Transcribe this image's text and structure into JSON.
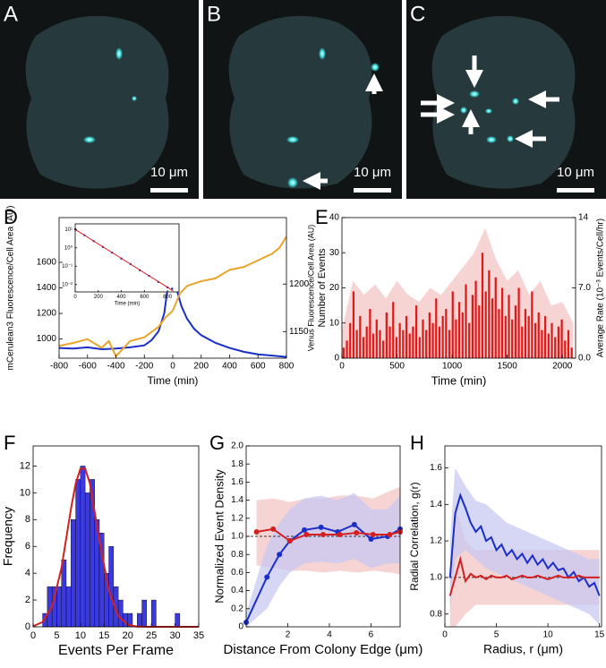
{
  "images": [
    {
      "label": "A",
      "scale_bar": "10 μm"
    },
    {
      "label": "B",
      "scale_bar": "10 μm"
    },
    {
      "label": "C",
      "scale_bar": "10 μm"
    }
  ],
  "chart_data": [
    {
      "type": "line",
      "label": "D",
      "xlabel": "Time (min)",
      "ylabel": "mCerulean3 Fluorescence/Cell Area (AU)",
      "y2label": "Venus Fluorescence/Cell Area (AU)",
      "xlim": [
        -800,
        800
      ],
      "xticks": [
        -800,
        -600,
        -400,
        -200,
        0,
        200,
        400,
        600,
        800
      ],
      "ylim": [
        850,
        1950
      ],
      "yticks": [
        1000,
        1200,
        1400,
        1600
      ],
      "y2lim": [
        1122,
        1270
      ],
      "y2ticks": [
        1150,
        1200
      ],
      "series": [
        {
          "color": "#1a2fc8",
          "x": [
            -800,
            -700,
            -600,
            -500,
            -400,
            -300,
            -200,
            -150,
            -100,
            -60,
            -30,
            -15,
            0,
            30,
            60,
            100,
            150,
            200,
            300,
            400,
            500,
            600,
            700,
            800
          ],
          "values": [
            930,
            925,
            935,
            920,
            925,
            935,
            950,
            990,
            1060,
            1200,
            1450,
            1690,
            1560,
            1380,
            1260,
            1160,
            1080,
            1030,
            970,
            930,
            900,
            880,
            870,
            860
          ]
        },
        {
          "color": "#e8a52a",
          "axis": "y2",
          "x": [
            -800,
            -700,
            -600,
            -500,
            -450,
            -400,
            -300,
            -200,
            -100,
            -50,
            0,
            50,
            100,
            200,
            300,
            400,
            500,
            600,
            700,
            750,
            800
          ],
          "values": [
            1135,
            1138,
            1142,
            1133,
            1140,
            1124,
            1140,
            1144,
            1155,
            1165,
            1172,
            1190,
            1198,
            1203,
            1206,
            1215,
            1218,
            1225,
            1232,
            1238,
            1250
          ]
        }
      ]
    },
    {
      "type": "scatter",
      "xlabel": "Time (min)",
      "log_y": true,
      "xlim": [
        0,
        900
      ],
      "xticks": [
        0,
        200,
        400,
        600,
        800
      ],
      "ylim": [
        0.004,
        20
      ],
      "yticks": [
        {
          "value": 10,
          "label": "10¹"
        },
        {
          "value": 1,
          "label": "10⁰"
        },
        {
          "value": 0.1,
          "label": "10⁻¹"
        },
        {
          "value": 0.01,
          "label": "10⁻²"
        }
      ],
      "series": [
        {
          "color": "#1a2fc8",
          "mode": "markers",
          "x": [
            0,
            80,
            160,
            240,
            320,
            400,
            480,
            560,
            640,
            720,
            800,
            840
          ],
          "values": [
            10,
            4.8,
            2.3,
            1.1,
            0.55,
            0.26,
            0.13,
            0.06,
            0.03,
            0.014,
            0.007,
            0.006
          ]
        },
        {
          "color": "#d42020",
          "mode": "lines",
          "x": [
            0,
            850
          ],
          "values": [
            10,
            0.0045
          ]
        }
      ]
    },
    {
      "type": "bar",
      "label": "E",
      "xlabel": "Time (min)",
      "ylabel": "Number of Events",
      "y2label": "Average Rate (10⁻³ Events/Cell/hr)",
      "xlim": [
        0,
        2120
      ],
      "xticks": [
        0,
        500,
        1000,
        1500,
        2000
      ],
      "ylim": [
        0,
        40
      ],
      "yticks": [
        0,
        10,
        20,
        30,
        40
      ],
      "y2lim": [
        0,
        14
      ],
      "y2ticks": [
        {
          "value": 0,
          "label": "0.0"
        },
        {
          "value": 7,
          "label": "7.0"
        },
        14
      ],
      "bands": [
        {
          "color": "#f4c6c6",
          "x": [
            0,
            100,
            200,
            300,
            400,
            500,
            600,
            700,
            800,
            900,
            1000,
            1100,
            1200,
            1300,
            1400,
            1500,
            1600,
            1700,
            1800,
            1900,
            2000,
            2100
          ],
          "upper": [
            8,
            22,
            18,
            21,
            17,
            22,
            18,
            16,
            20,
            18,
            22,
            26,
            30,
            37,
            28,
            22,
            25,
            18,
            22,
            15,
            16,
            10
          ]
        }
      ],
      "series": [
        {
          "color": "#e01818",
          "x": [
            15,
            45,
            75,
            105,
            135,
            165,
            195,
            225,
            255,
            285,
            315,
            345,
            375,
            405,
            435,
            465,
            495,
            525,
            555,
            585,
            615,
            645,
            675,
            705,
            735,
            765,
            795,
            825,
            855,
            885,
            915,
            945,
            975,
            1005,
            1035,
            1065,
            1095,
            1125,
            1155,
            1185,
            1215,
            1245,
            1275,
            1305,
            1335,
            1365,
            1395,
            1425,
            1455,
            1485,
            1515,
            1545,
            1575,
            1605,
            1635,
            1665,
            1695,
            1725,
            1755,
            1785,
            1815,
            1845,
            1875,
            1905,
            1935,
            1965,
            1995,
            2025,
            2055,
            2085
          ],
          "values": [
            3,
            5,
            10,
            19,
            8,
            12,
            6,
            9,
            14,
            7,
            11,
            8,
            5,
            13,
            9,
            16,
            6,
            10,
            8,
            12,
            7,
            9,
            15,
            6,
            11,
            8,
            13,
            10,
            17,
            9,
            12,
            14,
            8,
            19,
            11,
            16,
            13,
            21,
            10,
            18,
            22,
            15,
            30,
            19,
            25,
            17,
            23,
            14,
            20,
            12,
            18,
            11,
            15,
            20,
            9,
            14,
            12,
            19,
            10,
            13,
            8,
            12,
            7,
            10,
            6,
            9,
            11,
            5,
            8,
            3
          ]
        }
      ]
    },
    {
      "type": "histogram",
      "label": "F",
      "xlabel": "Events Per Frame",
      "ylabel": "Frequency",
      "xlim": [
        0,
        35
      ],
      "xticks": [
        0,
        5,
        10,
        15,
        20,
        25,
        30,
        35
      ],
      "ylim": [
        0,
        13.5
      ],
      "yticks": [
        0,
        2,
        4,
        6,
        8,
        10,
        12
      ],
      "color": "#3a3ae0",
      "bins": [
        2,
        3,
        4,
        5,
        6,
        7,
        8,
        9,
        10,
        11,
        12,
        13,
        14,
        15,
        16,
        17,
        18,
        19,
        20,
        21,
        22,
        23,
        24,
        25,
        26,
        27,
        28,
        29,
        30,
        31,
        32
      ],
      "values": [
        1,
        3,
        3,
        3,
        5,
        3,
        8,
        11,
        12,
        10,
        11,
        8,
        7,
        4,
        6,
        3,
        2,
        1,
        1,
        0,
        1,
        2,
        0,
        2,
        0,
        0,
        0,
        0,
        1,
        0
      ],
      "series": [
        {
          "color": "#d42020",
          "x": [
            0,
            2,
            4,
            6,
            8,
            9,
            10,
            11,
            12,
            14,
            16,
            18,
            20,
            22,
            25,
            30,
            35
          ],
          "values": [
            0.05,
            0.35,
            1.5,
            4.4,
            8.8,
            10.7,
            11.8,
            11.8,
            10.7,
            6.5,
            2.7,
            0.8,
            0.15,
            0.02,
            0,
            0,
            0
          ]
        }
      ]
    },
    {
      "type": "line",
      "label": "G",
      "xlabel": "Distance From Colony Edge (μm)",
      "ylabel": "Normalized Event Density",
      "xlim": [
        0,
        7.4
      ],
      "xticks": [
        2,
        4,
        6
      ],
      "ylim": [
        0,
        2
      ],
      "yticks": [
        0,
        0.2,
        0.4,
        0.6,
        0.8,
        {
          "value": 1,
          "label": "1.0"
        },
        1.2,
        1.4,
        1.6,
        1.8,
        {
          "value": 2,
          "label": "2.0"
        }
      ],
      "hline": 1,
      "bands": [
        {
          "color": "#f4c6c6",
          "x": [
            0.5,
            1.3,
            2.1,
            2.9,
            3.7,
            4.5,
            5.3,
            6.1,
            6.9,
            7.4
          ],
          "lower": [
            0.68,
            0.65,
            0.62,
            0.62,
            0.6,
            0.62,
            0.6,
            0.62,
            0.6,
            0.58
          ],
          "upper": [
            1.4,
            1.42,
            1.38,
            1.42,
            1.42,
            1.45,
            1.45,
            1.42,
            1.5,
            1.55
          ]
        },
        {
          "color": "#c8c8f2",
          "x": [
            0,
            1,
            1.6,
            2.1,
            2.8,
            3.6,
            4.4,
            5.2,
            6.0,
            6.8,
            7.4
          ],
          "lower": [
            0,
            0.2,
            0.45,
            0.6,
            0.7,
            0.72,
            0.7,
            0.75,
            0.65,
            0.7,
            0.7
          ],
          "upper": [
            0.15,
            0.9,
            1.15,
            1.3,
            1.42,
            1.45,
            1.4,
            1.48,
            1.3,
            1.3,
            1.45
          ]
        }
      ],
      "series": [
        {
          "color": "#1a2fc8",
          "mode": "lines+markers",
          "x": [
            0,
            1,
            1.6,
            2.1,
            2.8,
            3.6,
            4.4,
            5.2,
            6.0,
            6.8,
            7.4
          ],
          "values": [
            0.05,
            0.55,
            0.8,
            0.95,
            1.07,
            1.1,
            1.05,
            1.13,
            0.97,
            1.0,
            1.08
          ]
        },
        {
          "color": "#d42020",
          "mode": "lines+markers",
          "x": [
            0.5,
            1.3,
            2.1,
            2.9,
            3.7,
            4.5,
            5.3,
            6.1,
            6.9,
            7.4
          ],
          "values": [
            1.05,
            1.08,
            0.95,
            1.02,
            1.02,
            1.02,
            1.04,
            1.02,
            1.02,
            1.05
          ]
        }
      ]
    },
    {
      "type": "line",
      "label": "H",
      "xlabel": "Radius, r (μm)",
      "ylabel": "Radial Correlation, g(r)",
      "xlim": [
        0,
        15.2
      ],
      "xticks": [
        0,
        5,
        10,
        15
      ],
      "ylim": [
        0.73,
        1.72
      ],
      "yticks": [
        0.8,
        {
          "value": 1,
          "label": "1.0"
        },
        1.2,
        1.4,
        1.6
      ],
      "hline": 1,
      "bands": [
        {
          "color": "#f4c6c6",
          "x": [
            0.5,
            1,
            2,
            3,
            4,
            6,
            8,
            10,
            12,
            14,
            15
          ],
          "lower": [
            0.73,
            0.73,
            0.8,
            0.85,
            0.85,
            0.85,
            0.85,
            0.85,
            0.85,
            0.85,
            0.85
          ],
          "upper": [
            1.0,
            1.4,
            1.2,
            1.15,
            1.15,
            1.15,
            1.15,
            1.15,
            1.15,
            1.15,
            1.15
          ]
        },
        {
          "color": "#c8c8f2",
          "x": [
            0.5,
            1,
            2,
            3,
            4,
            6,
            8,
            10,
            12,
            14,
            15
          ],
          "lower": [
            0.8,
            1.1,
            1.15,
            1.1,
            1.05,
            1.0,
            0.95,
            0.9,
            0.85,
            0.8,
            0.74
          ],
          "upper": [
            1.2,
            1.6,
            1.5,
            1.42,
            1.4,
            1.3,
            1.25,
            1.2,
            1.15,
            1.1,
            1.1
          ]
        }
      ],
      "series": [
        {
          "color": "#1a2fc8",
          "x": [
            0.5,
            1,
            1.5,
            2,
            2.5,
            3,
            3.5,
            4,
            4.5,
            5,
            5.5,
            6,
            6.5,
            7,
            7.5,
            8,
            8.5,
            9,
            9.5,
            10,
            10.5,
            11,
            11.5,
            12,
            12.5,
            13,
            13.5,
            14,
            14.5,
            15
          ],
          "values": [
            1.0,
            1.35,
            1.45,
            1.38,
            1.3,
            1.25,
            1.28,
            1.2,
            1.22,
            1.15,
            1.18,
            1.12,
            1.15,
            1.1,
            1.13,
            1.08,
            1.12,
            1.07,
            1.1,
            1.05,
            1.08,
            1.04,
            1.05,
            1.0,
            1.03,
            0.98,
            1.0,
            0.95,
            0.97,
            0.9
          ]
        },
        {
          "color": "#d42020",
          "x": [
            0.5,
            1,
            1.5,
            2,
            2.5,
            3,
            3.5,
            4,
            4.5,
            5,
            5.5,
            6,
            6.5,
            7,
            7.5,
            8,
            8.5,
            9,
            9.5,
            10,
            10.5,
            11,
            11.5,
            12,
            12.5,
            13,
            13.5,
            14,
            14.5,
            15
          ],
          "values": [
            0.9,
            1.0,
            1.1,
            0.98,
            1.02,
            1.0,
            1.01,
            0.99,
            1.01,
            1.0,
            1.0,
            1.01,
            0.99,
            1.0,
            1.01,
            1.0,
            1.0,
            1.01,
            1.0,
            0.99,
            1.0,
            1.01,
            1.0,
            1.0,
            1.0,
            1.01,
            1.0,
            1.0,
            1.0,
            1.0
          ]
        }
      ]
    }
  ]
}
